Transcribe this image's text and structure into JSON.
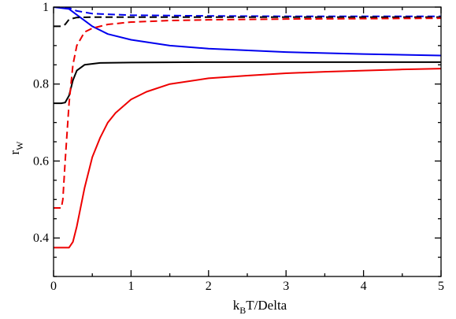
{
  "chart_data": {
    "type": "line",
    "xlabel": {
      "main": "k",
      "sub": "B",
      "rest": "T/Delta"
    },
    "ylabel": {
      "main": "r",
      "sub": "W"
    },
    "xlim": [
      0,
      5
    ],
    "ylim": [
      0.3,
      1.0
    ],
    "xticks": [
      "0",
      "1",
      "2",
      "3",
      "4",
      "5"
    ],
    "yticks": [
      "0.4",
      "0.6",
      "0.8",
      "1"
    ],
    "grid": false,
    "series": [
      {
        "color": "#0000ee",
        "dash": false,
        "x": [
          0,
          0.2,
          0.3,
          0.4,
          0.5,
          0.7,
          1.0,
          1.5,
          2.0,
          3.0,
          4.0,
          5.0
        ],
        "y": [
          1.0,
          0.995,
          0.98,
          0.965,
          0.95,
          0.93,
          0.915,
          0.9,
          0.892,
          0.883,
          0.878,
          0.874
        ]
      },
      {
        "color": "#0000ee",
        "dash": true,
        "x": [
          0,
          0.2,
          0.3,
          0.5,
          1.0,
          2.0,
          3.0,
          5.0
        ],
        "y": [
          1.0,
          0.998,
          0.99,
          0.983,
          0.979,
          0.977,
          0.976,
          0.976
        ]
      },
      {
        "color": "#000000",
        "dash": false,
        "x": [
          0,
          0.1,
          0.15,
          0.2,
          0.25,
          0.3,
          0.4,
          0.6,
          1.0,
          2.0,
          5.0
        ],
        "y": [
          0.75,
          0.75,
          0.752,
          0.77,
          0.81,
          0.835,
          0.85,
          0.855,
          0.856,
          0.857,
          0.857
        ]
      },
      {
        "color": "#000000",
        "dash": true,
        "x": [
          0,
          0.1,
          0.15,
          0.2,
          0.3,
          0.5,
          1.0,
          5.0
        ],
        "y": [
          0.95,
          0.95,
          0.955,
          0.968,
          0.973,
          0.974,
          0.974,
          0.974
        ]
      },
      {
        "color": "#ee0000",
        "dash": false,
        "x": [
          0,
          0.2,
          0.25,
          0.3,
          0.4,
          0.5,
          0.6,
          0.7,
          0.8,
          1.0,
          1.2,
          1.5,
          2.0,
          2.5,
          3.0,
          3.5,
          4.0,
          4.5,
          5.0
        ],
        "y": [
          0.375,
          0.375,
          0.39,
          0.43,
          0.53,
          0.61,
          0.66,
          0.7,
          0.725,
          0.76,
          0.78,
          0.8,
          0.815,
          0.822,
          0.828,
          0.832,
          0.835,
          0.838,
          0.84
        ]
      },
      {
        "color": "#ee0000",
        "dash": true,
        "x": [
          0,
          0.1,
          0.12,
          0.15,
          0.2,
          0.25,
          0.3,
          0.4,
          0.5,
          0.7,
          1.0,
          1.5,
          2.0,
          3.0,
          4.0,
          5.0
        ],
        "y": [
          0.478,
          0.478,
          0.5,
          0.6,
          0.75,
          0.85,
          0.9,
          0.935,
          0.945,
          0.955,
          0.961,
          0.965,
          0.967,
          0.969,
          0.97,
          0.971
        ]
      }
    ]
  }
}
